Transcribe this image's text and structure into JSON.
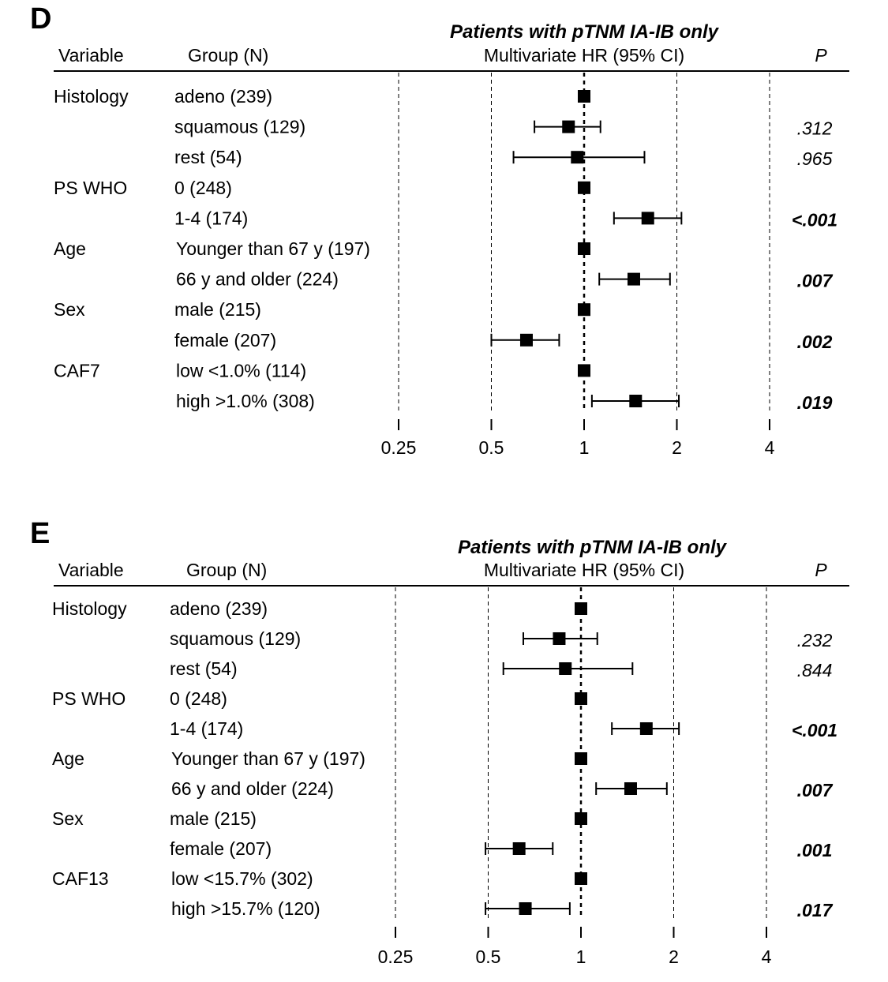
{
  "chart_data": [
    {
      "type": "forest",
      "panel_label": "D",
      "title": "Patients with pTNM IA-IB only",
      "header": {
        "variable": "Variable",
        "group": "Group (N)",
        "hr": "Multivariate HR (95% CI)",
        "p": "P"
      },
      "x_scale": "log2",
      "xlim": [
        0.25,
        4
      ],
      "x_ticks": [
        0.25,
        0.5,
        1,
        2,
        4
      ],
      "x_tick_labels": [
        "0.25",
        "0.5",
        "1",
        "2",
        "4"
      ],
      "reference_line": 1,
      "rows": [
        {
          "variable": "Histology",
          "group": "adeno (239)",
          "hr": 1.0,
          "lo": null,
          "hi": null,
          "p": "",
          "sig": false
        },
        {
          "variable": "",
          "group": "squamous (129)",
          "hr": 0.89,
          "lo": 0.69,
          "hi": 1.13,
          "p": ".312",
          "sig": false
        },
        {
          "variable": "",
          "group": "rest (54)",
          "hr": 0.95,
          "lo": 0.59,
          "hi": 1.57,
          "p": ".965",
          "sig": false
        },
        {
          "variable": "PS WHO",
          "group": "0 (248)",
          "hr": 1.0,
          "lo": null,
          "hi": null,
          "p": "",
          "sig": false
        },
        {
          "variable": "",
          "group": "1-4 (174)",
          "hr": 1.61,
          "lo": 1.25,
          "hi": 2.07,
          "p": "<.001",
          "sig": true
        },
        {
          "variable": "Age",
          "group": "Younger than 67 y (197)",
          "hr": 1.0,
          "lo": null,
          "hi": null,
          "p": "",
          "sig": false
        },
        {
          "variable": "",
          "group": "66 y and older (224)",
          "hr": 1.45,
          "lo": 1.12,
          "hi": 1.9,
          "p": ".007",
          "sig": true
        },
        {
          "variable": "Sex",
          "group": "male (215)",
          "hr": 1.0,
          "lo": null,
          "hi": null,
          "p": "",
          "sig": false
        },
        {
          "variable": "",
          "group": "female (207)",
          "hr": 0.65,
          "lo": 0.5,
          "hi": 0.83,
          "p": ".002",
          "sig": true
        },
        {
          "variable": "CAF7",
          "group": "low <1.0% (114)",
          "hr": 1.0,
          "lo": null,
          "hi": null,
          "p": "",
          "sig": false
        },
        {
          "variable": "",
          "group": "high >1.0% (308)",
          "hr": 1.47,
          "lo": 1.06,
          "hi": 2.03,
          "p": ".019",
          "sig": true
        }
      ]
    },
    {
      "type": "forest",
      "panel_label": "E",
      "title": "Patients with pTNM IA-IB only",
      "header": {
        "variable": "Variable",
        "group": "Group (N)",
        "hr": "Multivariate HR (95% CI)",
        "p": "P"
      },
      "x_scale": "log2",
      "xlim": [
        0.25,
        4
      ],
      "x_ticks": [
        0.25,
        0.5,
        1,
        2,
        4
      ],
      "x_tick_labels": [
        "0.25",
        "0.5",
        "1",
        "2",
        "4"
      ],
      "reference_line": 1,
      "rows": [
        {
          "variable": "Histology",
          "group": "adeno (239)",
          "hr": 1.0,
          "lo": null,
          "hi": null,
          "p": "",
          "sig": false
        },
        {
          "variable": "",
          "group": "squamous (129)",
          "hr": 0.85,
          "lo": 0.65,
          "hi": 1.13,
          "p": ".232",
          "sig": false
        },
        {
          "variable": "",
          "group": "rest (54)",
          "hr": 0.89,
          "lo": 0.56,
          "hi": 1.47,
          "p": ".844",
          "sig": false
        },
        {
          "variable": "PS WHO",
          "group": "0 (248)",
          "hr": 1.0,
          "lo": null,
          "hi": null,
          "p": "",
          "sig": false
        },
        {
          "variable": "",
          "group": "1-4 (174)",
          "hr": 1.63,
          "lo": 1.26,
          "hi": 2.08,
          "p": "<.001",
          "sig": true
        },
        {
          "variable": "Age",
          "group": "Younger than 67 y (197)",
          "hr": 1.0,
          "lo": null,
          "hi": null,
          "p": "",
          "sig": false
        },
        {
          "variable": "",
          "group": "66 y and older (224)",
          "hr": 1.45,
          "lo": 1.12,
          "hi": 1.9,
          "p": ".007",
          "sig": true
        },
        {
          "variable": "Sex",
          "group": "male (215)",
          "hr": 1.0,
          "lo": null,
          "hi": null,
          "p": "",
          "sig": false
        },
        {
          "variable": "",
          "group": "female (207)",
          "hr": 0.63,
          "lo": 0.49,
          "hi": 0.81,
          "p": ".001",
          "sig": true
        },
        {
          "variable": "CAF13",
          "group": "low <15.7% (302)",
          "hr": 1.0,
          "lo": null,
          "hi": null,
          "p": "",
          "sig": false
        },
        {
          "variable": "",
          "group": "high >15.7% (120)",
          "hr": 0.66,
          "lo": 0.49,
          "hi": 0.92,
          "p": ".017",
          "sig": true
        }
      ]
    }
  ]
}
